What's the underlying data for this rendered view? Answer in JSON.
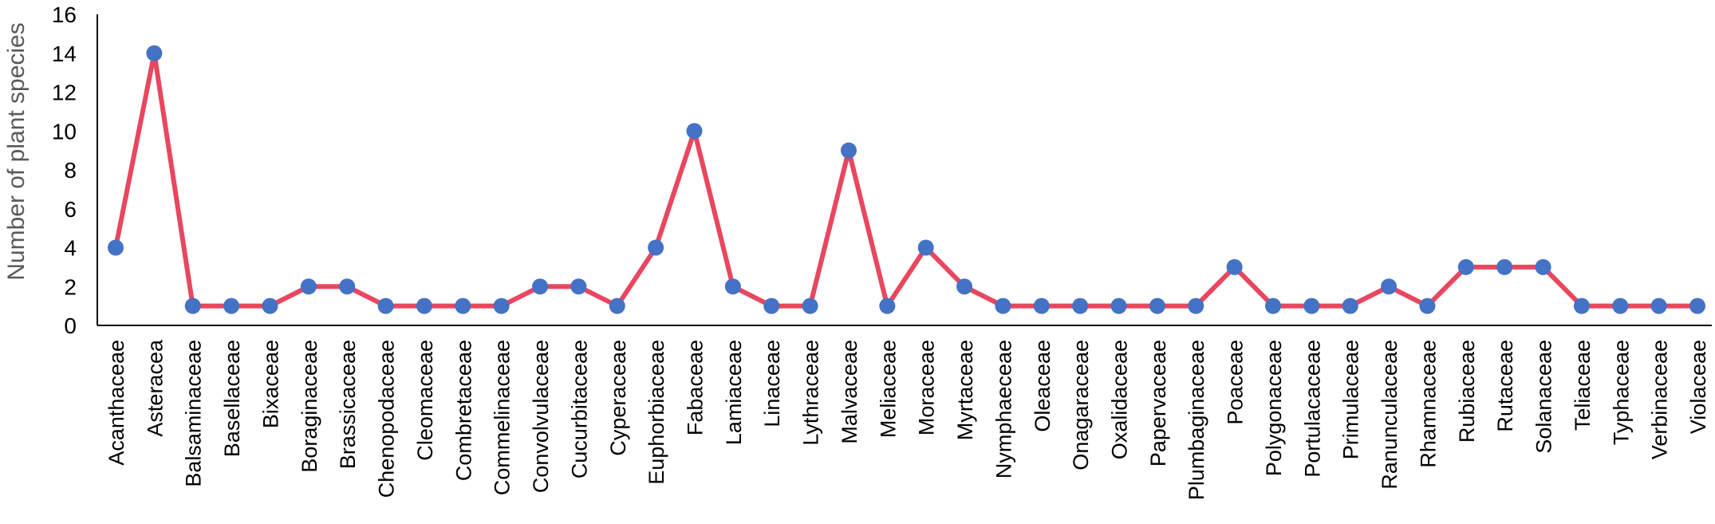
{
  "chart_data": {
    "type": "line",
    "title": "",
    "xlabel": "",
    "ylabel": "Number of plant species",
    "ylim": [
      0,
      16
    ],
    "yticks": [
      0,
      2,
      4,
      6,
      8,
      10,
      12,
      14,
      16
    ],
    "grid": false,
    "categories": [
      "Acanthaceae",
      "Asteracea",
      "Balsaminaceae",
      "Basellaceae",
      "Bixaceae",
      "Boraginaceae",
      "Brassicaceae",
      "Chenopodaceae",
      "Cleomaceae",
      "Combretaceae",
      "Commelinaceae",
      "Convolvulaceae",
      "Cucurbitaceae",
      "Cyperaceae",
      "Euphorbiaceae",
      "Fabaceae",
      "Lamiaceae",
      "Linaceae",
      "Lythraceae",
      "Malvaceae",
      "Meliaceae",
      "Moraceae",
      "Myrtaceae",
      "Nymphaeceae",
      "Oleaceae",
      "Onagaraceae",
      "Oxalidaceae",
      "Papervaceae",
      "Plumbaginaceae",
      "Poaceae",
      "Polygonaceae",
      "Portulacaceae",
      "Primulaceae",
      "Ranunculaceae",
      "Rhamnaceae",
      "Rubiaceae",
      "Rutaceae",
      "Solanaceae",
      "Teliaceae",
      "Typhaceae",
      "Verbinaceae",
      "Violaceae"
    ],
    "values": [
      4,
      14,
      1,
      1,
      1,
      2,
      2,
      1,
      1,
      1,
      1,
      2,
      2,
      1,
      4,
      10,
      2,
      1,
      1,
      9,
      1,
      4,
      2,
      1,
      1,
      1,
      1,
      1,
      1,
      3,
      1,
      1,
      1,
      2,
      1,
      3,
      3,
      3,
      1,
      1,
      1,
      1
    ],
    "line_color": "#E8475F",
    "marker_color": "#4472C4",
    "axis_color": "#000000",
    "ylabel_color": "#595959"
  }
}
